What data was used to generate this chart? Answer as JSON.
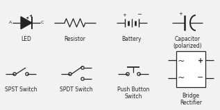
{
  "bg_color": "#f2f2f2",
  "line_color": "#222222",
  "text_color": "#222222",
  "font_size": 5.5,
  "figsize": [
    3.17,
    1.59
  ],
  "dpi": 100,
  "labels": {
    "led": "LED",
    "resistor": "Resistor",
    "battery": "Battery",
    "capacitor": "Capacitor\n(polarized)",
    "spst": "SPST Switch",
    "spdt": "SPDT Switch",
    "pushbutton": "Push Button\nSwitch",
    "bridge": "Bridge\nRectifier"
  }
}
